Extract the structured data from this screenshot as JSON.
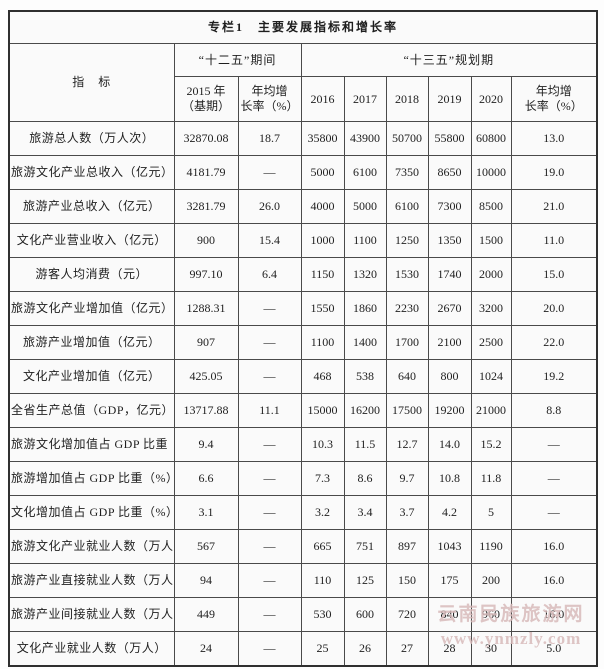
{
  "page": {
    "title": "专栏1　主要发展指标和增长率"
  },
  "table": {
    "header": {
      "indicator_label": "指　标",
      "period_125": "“十二五”期间",
      "period_135": "“十三五”规划期",
      "base_year": "2015 年\n（基期）",
      "avg_growth_125": "年均增\n长率（%）",
      "years": [
        "2016",
        "2017",
        "2018",
        "2019",
        "2020"
      ],
      "avg_growth_135": "年均增\n长率（%）"
    },
    "rows": [
      {
        "label": "旅游总人数（万人次）",
        "base_2015": "32870.08",
        "growth_125": "18.7",
        "values": [
          "35800",
          "43900",
          "50700",
          "55800",
          "60800"
        ],
        "growth_135": "13.0"
      },
      {
        "label": "旅游文化产业总收入（亿元）",
        "base_2015": "4181.79",
        "growth_125": "—",
        "values": [
          "5000",
          "6100",
          "7350",
          "8650",
          "10000"
        ],
        "growth_135": "19.0"
      },
      {
        "label": "旅游产业总收入（亿元）",
        "base_2015": "3281.79",
        "growth_125": "26.0",
        "values": [
          "4000",
          "5000",
          "6100",
          "7300",
          "8500"
        ],
        "growth_135": "21.0"
      },
      {
        "label": "文化产业营业收入（亿元）",
        "base_2015": "900",
        "growth_125": "15.4",
        "values": [
          "1000",
          "1100",
          "1250",
          "1350",
          "1500"
        ],
        "growth_135": "11.0"
      },
      {
        "label": "游客人均消费（元）",
        "base_2015": "997.10",
        "growth_125": "6.4",
        "values": [
          "1150",
          "1320",
          "1530",
          "1740",
          "2000"
        ],
        "growth_135": "15.0"
      },
      {
        "label": "旅游文化产业增加值（亿元）",
        "base_2015": "1288.31",
        "growth_125": "—",
        "values": [
          "1550",
          "1860",
          "2230",
          "2670",
          "3200"
        ],
        "growth_135": "20.0"
      },
      {
        "label": "旅游产业增加值（亿元）",
        "base_2015": "907",
        "growth_125": "—",
        "values": [
          "1100",
          "1400",
          "1700",
          "2100",
          "2500"
        ],
        "growth_135": "22.0"
      },
      {
        "label": "文化产业增加值（亿元）",
        "base_2015": "425.05",
        "growth_125": "—",
        "values": [
          "468",
          "538",
          "640",
          "800",
          "1024"
        ],
        "growth_135": "19.2"
      },
      {
        "label": "全省生产总值（GDP，亿元）",
        "base_2015": "13717.88",
        "growth_125": "11.1",
        "values": [
          "15000",
          "16200",
          "17500",
          "19200",
          "21000"
        ],
        "growth_135": "8.8"
      },
      {
        "label": "旅游文化增加值占 GDP 比重（%）",
        "base_2015": "9.4",
        "growth_125": "—",
        "values": [
          "10.3",
          "11.5",
          "12.7",
          "14.0",
          "15.2"
        ],
        "growth_135": "—"
      },
      {
        "label": "旅游增加值占 GDP 比重（%）",
        "base_2015": "6.6",
        "growth_125": "—",
        "values": [
          "7.3",
          "8.6",
          "9.7",
          "10.8",
          "11.8"
        ],
        "growth_135": "—"
      },
      {
        "label": "文化增加值占 GDP 比重（%）",
        "base_2015": "3.1",
        "growth_125": "—",
        "values": [
          "3.2",
          "3.4",
          "3.7",
          "4.2",
          "5"
        ],
        "growth_135": "—"
      },
      {
        "label": "旅游文化产业就业人数（万人）",
        "base_2015": "567",
        "growth_125": "—",
        "values": [
          "665",
          "751",
          "897",
          "1043",
          "1190"
        ],
        "growth_135": "16.0"
      },
      {
        "label": "旅游产业直接就业人数（万人）",
        "base_2015": "94",
        "growth_125": "—",
        "values": [
          "110",
          "125",
          "150",
          "175",
          "200"
        ],
        "growth_135": "16.0"
      },
      {
        "label": "旅游产业间接就业人数（万人）",
        "base_2015": "449",
        "growth_125": "—",
        "values": [
          "530",
          "600",
          "720",
          "840",
          "960"
        ],
        "growth_135": "16.0"
      },
      {
        "label": "文化产业就业人数（万人）",
        "base_2015": "24",
        "growth_125": "—",
        "values": [
          "25",
          "26",
          "27",
          "28",
          "30"
        ],
        "growth_135": "5.0"
      }
    ]
  },
  "watermark": {
    "line1": "云南民族旅游网",
    "line2": "www.ynmzly.com"
  },
  "colors": {
    "border": "#4a4a4a",
    "outer_border": "#2f2f2f",
    "text": "#1e1e1e",
    "table_bg": "#fafafa",
    "watermark": "#d7baba"
  }
}
